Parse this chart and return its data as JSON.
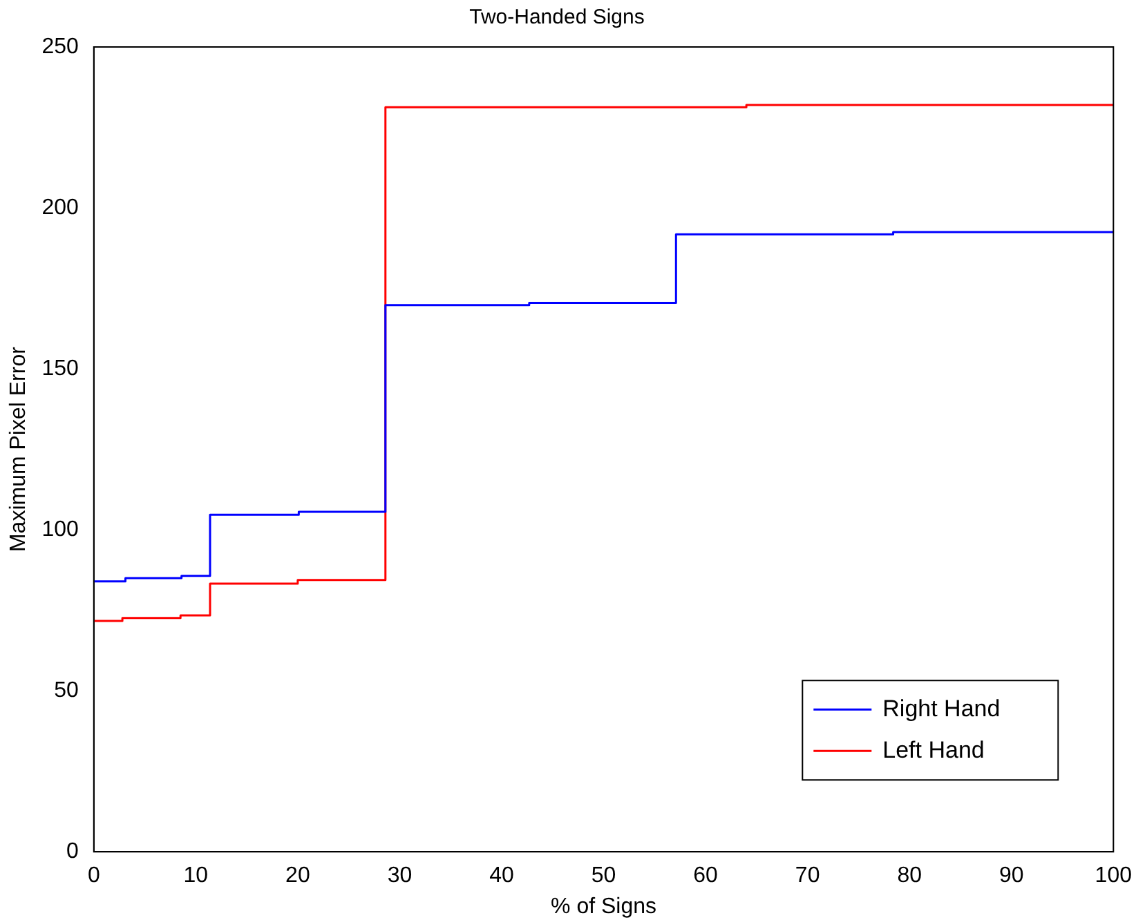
{
  "chart_data": {
    "type": "step",
    "title": "Two-Handed Signs",
    "xlabel": "% of Signs",
    "ylabel": "Maximum Pixel Error",
    "xlim": [
      0,
      100
    ],
    "xticks": [
      0,
      10,
      20,
      30,
      40,
      50,
      60,
      70,
      80,
      90,
      100
    ],
    "ylim": [
      0,
      250
    ],
    "yticks": [
      0,
      50,
      100,
      150,
      200,
      250
    ],
    "grid": false,
    "legend": "bottom right",
    "series": [
      {
        "name": "Right Hand",
        "color": "#0000ff",
        "x": [
          0,
          3.1,
          8.6,
          11.4,
          20.1,
          28.6,
          42.7,
          57.1,
          78.4,
          100
        ],
        "values": [
          84,
          85,
          85.7,
          104.7,
          105.6,
          169.8,
          170.5,
          191.8,
          192.5,
          192.5
        ]
      },
      {
        "name": "Left Hand",
        "color": "#ff0000",
        "x": [
          0,
          2.8,
          8.5,
          11.4,
          20,
          28.6,
          64,
          100
        ],
        "values": [
          71.7,
          72.6,
          73.4,
          83.3,
          84.4,
          231.3,
          232,
          232
        ]
      }
    ]
  }
}
